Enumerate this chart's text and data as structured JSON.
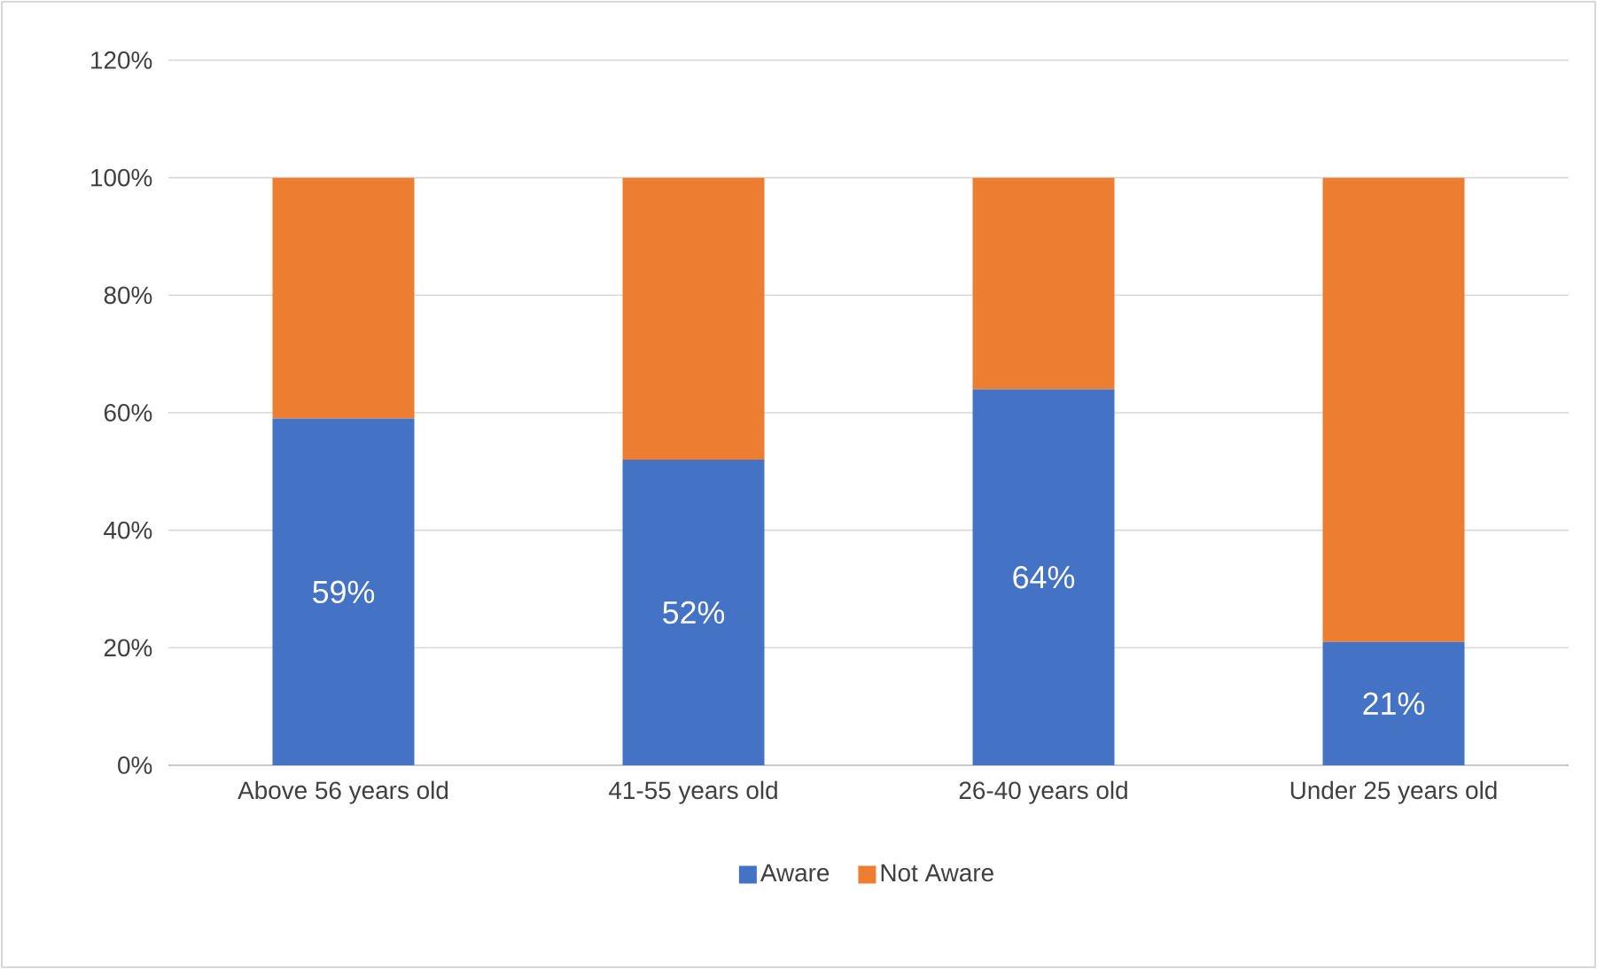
{
  "chart_data": {
    "type": "bar",
    "stacked": true,
    "categories": [
      "Above 56 years old",
      "41-55 years old",
      "26-40 years old",
      "Under 25 years old"
    ],
    "series": [
      {
        "name": "Aware",
        "color": "#4472c4",
        "values": [
          59,
          52,
          64,
          21
        ],
        "value_labels": [
          "59%",
          "52%",
          "64%",
          "21%"
        ]
      },
      {
        "name": "Not Aware",
        "color": "#ed7d31",
        "values": [
          41,
          48,
          36,
          79
        ]
      }
    ],
    "ylim": [
      0,
      120
    ],
    "yticks": [
      {
        "value": 0,
        "label": "0%"
      },
      {
        "value": 20,
        "label": "20%"
      },
      {
        "value": 40,
        "label": "40%"
      },
      {
        "value": 60,
        "label": "60%"
      },
      {
        "value": 80,
        "label": "80%"
      },
      {
        "value": 100,
        "label": "100%"
      },
      {
        "value": 120,
        "label": "120%"
      }
    ],
    "grid": "y",
    "legend": "bottom"
  }
}
